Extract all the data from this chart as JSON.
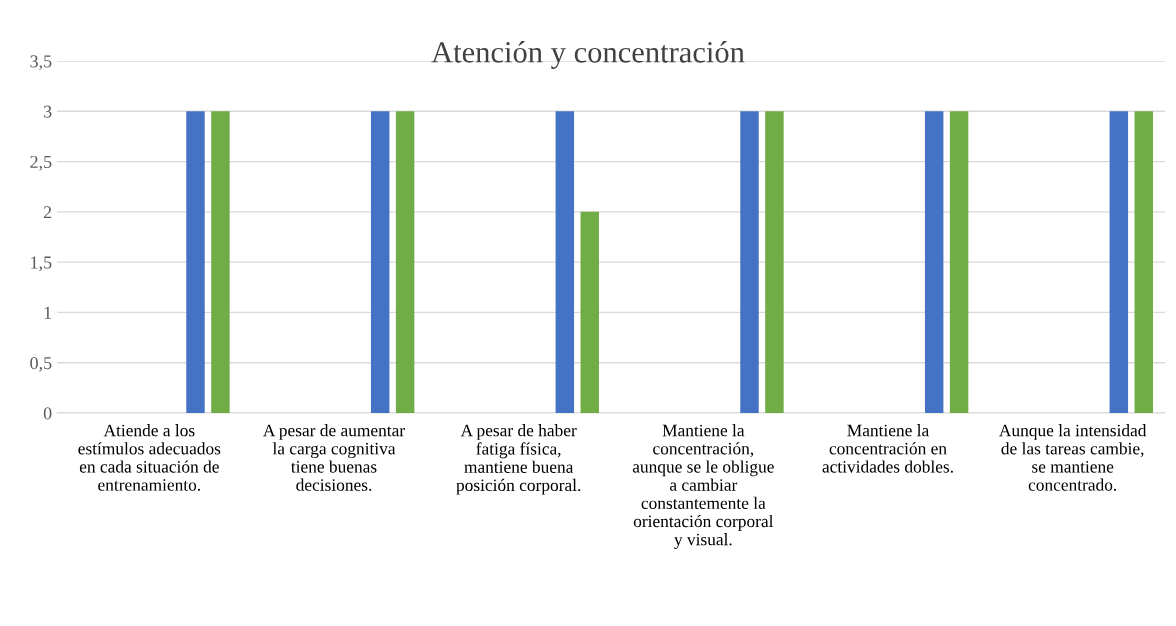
{
  "chart_data": {
    "type": "bar",
    "title": "Atención y concentración",
    "categories": [
      "Atiende a los\nestímulos adecuados\nen cada situación de\nentrenamiento.",
      "A pesar de aumentar\nla carga cognitiva\ntiene buenas\ndecisiones.",
      "A pesar de haber\nfatiga física,\nmantiene buena\nposición corporal.",
      "Mantiene la\nconcentración,\naunque se le obligue\na cambiar\nconstantemente la\norientación corporal\ny visual.",
      "Mantiene la\nconcentración en\nactividades dobles.",
      "Aunque la intensidad\nde las tareas cambie,\nse mantiene\nconcentrado."
    ],
    "series": [
      {
        "color": "#4472c4",
        "values": [
          3,
          3,
          3,
          3,
          3,
          3
        ]
      },
      {
        "color": "#70ad47",
        "values": [
          3,
          3,
          2,
          3,
          3,
          3
        ]
      }
    ],
    "ylim": [
      0,
      3.5
    ],
    "yticks": [
      0,
      {
        "value": 0.5,
        "label": "0,5"
      },
      1,
      {
        "value": 1.5,
        "label": "1,5"
      },
      2,
      {
        "value": 2.5,
        "label": "2,5"
      },
      3,
      {
        "value": 3.5,
        "label": "3,5"
      }
    ],
    "grid": "y"
  }
}
